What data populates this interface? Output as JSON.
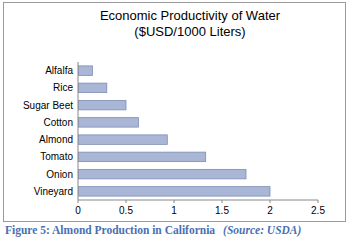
{
  "chart_data": {
    "type": "bar",
    "orientation": "horizontal",
    "title": [
      "Economic Productivity of Water",
      "($USD/1000 Liters)"
    ],
    "categories": [
      "Alfalfa",
      "Rice",
      "Sugar Beet",
      "Cotton",
      "Almond",
      "Tomato",
      "Onion",
      "Vineyard"
    ],
    "values": [
      0.15,
      0.3,
      0.5,
      0.63,
      0.93,
      1.33,
      1.75,
      2.0
    ],
    "color": "#a9b6d6",
    "xlim": [
      0,
      2.5
    ],
    "xticks": [
      0,
      0.5,
      1,
      1.5,
      2,
      2.5
    ],
    "grid": false,
    "caption": "Figure 5: Almond Production in California",
    "source": "(Source: USDA)"
  }
}
